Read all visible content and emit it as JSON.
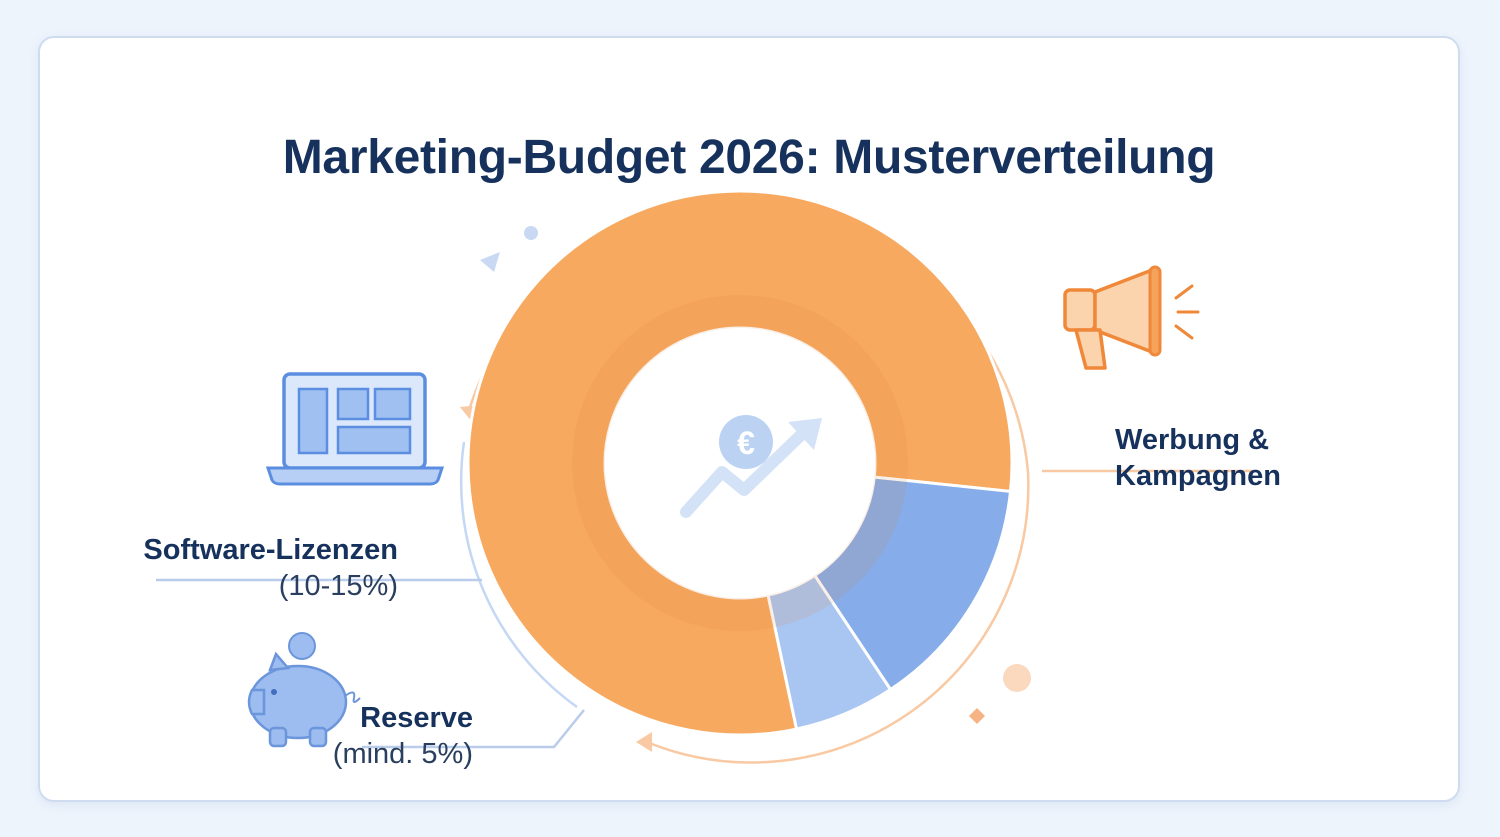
{
  "title": "Marketing-Budget 2026: Musterverteilung",
  "chart_data": {
    "type": "pie",
    "variant": "donut",
    "title": "Marketing-Budget 2026: Musterverteilung",
    "slices": [
      {
        "label": "Werbung & Kampagnen",
        "value": 80,
        "range_text": "",
        "color": "#f7a95f"
      },
      {
        "label": "Software-Lizenzen",
        "value": 14,
        "range_text": "(10-15%)",
        "color": "#86acea"
      },
      {
        "label": "Reserve",
        "value": 6,
        "range_text": "(mind. 5%)",
        "color": "#a9c6f2"
      }
    ],
    "center_icon": "euro-growth-icon"
  },
  "labels": {
    "werbung": {
      "name_line1": "Werbung &",
      "name_line2": "Kampagnen",
      "icon": "megaphone-icon"
    },
    "software": {
      "name": "Software-Lizenzen",
      "pct": "(10-15%)",
      "icon": "laptop-icon"
    },
    "reserve": {
      "name": "Reserve",
      "pct": "(mind. 5%)",
      "icon": "piggy-bank-icon"
    }
  },
  "colors": {
    "orange": "#f7a95f",
    "blue": "#86acea",
    "light_blue": "#a9c6f2",
    "title": "#16325c"
  }
}
